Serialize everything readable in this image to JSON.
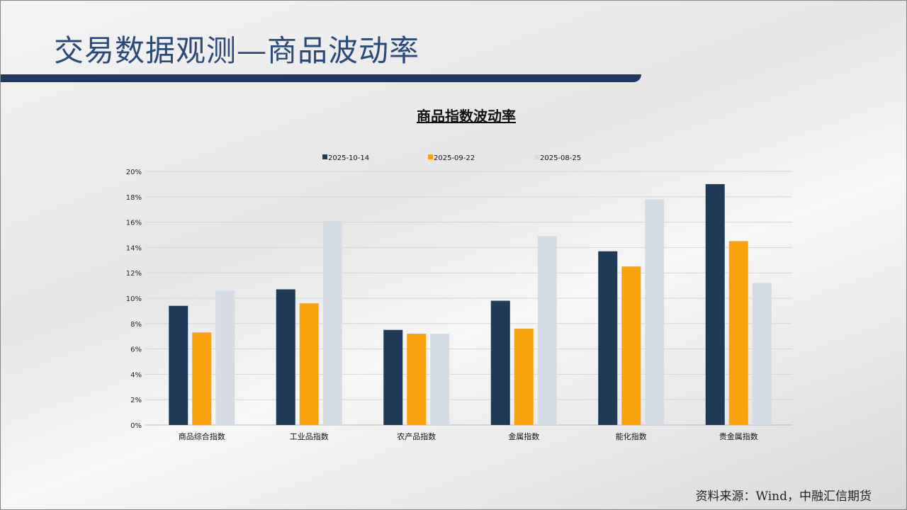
{
  "slide": {
    "title": "交易数据观测—商品波动率",
    "source": "资料来源：Wind，中融汇信期货"
  },
  "chart_data": {
    "type": "bar",
    "title": "商品指数波动率",
    "categories": [
      "商品综合指数",
      "工业品指数",
      "农产品指数",
      "金属指数",
      "能化指数",
      "贵金属指数"
    ],
    "series": [
      {
        "name": "2025-10-14",
        "color": "#1f3a56",
        "values": [
          9.4,
          10.7,
          7.5,
          9.8,
          13.7,
          19.0
        ]
      },
      {
        "name": "2025-09-22",
        "color": "#f9a20c",
        "values": [
          7.3,
          9.6,
          7.2,
          7.6,
          12.5,
          14.5
        ]
      },
      {
        "name": "2025-08-25",
        "color": "#d5dce4",
        "values": [
          10.6,
          16.1,
          7.2,
          14.9,
          17.8,
          11.2
        ]
      }
    ],
    "yticks": [
      "0%",
      "2%",
      "4%",
      "6%",
      "8%",
      "10%",
      "12%",
      "14%",
      "16%",
      "18%",
      "20%"
    ],
    "ylim": [
      0,
      20
    ],
    "ylabel": "",
    "xlabel": "",
    "grid": true,
    "legend": "top"
  }
}
